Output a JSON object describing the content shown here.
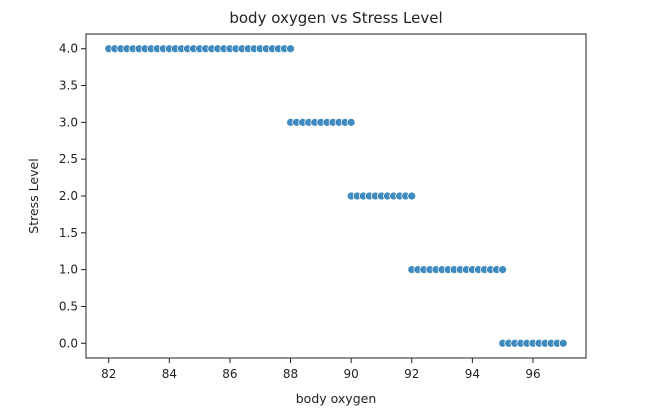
{
  "chart_data": {
    "type": "scatter",
    "title": "body oxygen vs Stress Level",
    "xlabel": "body oxygen",
    "ylabel": "Stress Level",
    "xlim": [
      81.25,
      97.75
    ],
    "ylim": [
      -0.2,
      4.2
    ],
    "xticks": [
      "82",
      "84",
      "86",
      "88",
      "90",
      "92",
      "94",
      "96"
    ],
    "yticks": [
      "0.0",
      "0.5",
      "1.0",
      "1.5",
      "2.0",
      "2.5",
      "3.0",
      "3.5",
      "4.0"
    ],
    "grid": false,
    "marker_color": "#1f77b4",
    "series": [
      {
        "points": [
          [
            82.0,
            4
          ],
          [
            82.2,
            4
          ],
          [
            82.4,
            4
          ],
          [
            82.6,
            4
          ],
          [
            82.8,
            4
          ],
          [
            83.0,
            4
          ],
          [
            83.2,
            4
          ],
          [
            83.4,
            4
          ],
          [
            83.6,
            4
          ],
          [
            83.8,
            4
          ],
          [
            84.0,
            4
          ],
          [
            84.2,
            4
          ],
          [
            84.4,
            4
          ],
          [
            84.6,
            4
          ],
          [
            84.8,
            4
          ],
          [
            85.0,
            4
          ],
          [
            85.2,
            4
          ],
          [
            85.4,
            4
          ],
          [
            85.6,
            4
          ],
          [
            85.8,
            4
          ],
          [
            86.0,
            4
          ],
          [
            86.2,
            4
          ],
          [
            86.4,
            4
          ],
          [
            86.6,
            4
          ],
          [
            86.8,
            4
          ],
          [
            87.0,
            4
          ],
          [
            87.2,
            4
          ],
          [
            87.4,
            4
          ],
          [
            87.6,
            4
          ],
          [
            87.8,
            4
          ],
          [
            88.0,
            4
          ],
          [
            88.0,
            3
          ],
          [
            88.2,
            3
          ],
          [
            88.4,
            3
          ],
          [
            88.6,
            3
          ],
          [
            88.8,
            3
          ],
          [
            89.0,
            3
          ],
          [
            89.2,
            3
          ],
          [
            89.4,
            3
          ],
          [
            89.6,
            3
          ],
          [
            89.8,
            3
          ],
          [
            90.0,
            3
          ],
          [
            90.0,
            2
          ],
          [
            90.2,
            2
          ],
          [
            90.4,
            2
          ],
          [
            90.6,
            2
          ],
          [
            90.8,
            2
          ],
          [
            91.0,
            2
          ],
          [
            91.2,
            2
          ],
          [
            91.4,
            2
          ],
          [
            91.6,
            2
          ],
          [
            91.8,
            2
          ],
          [
            92.0,
            2
          ],
          [
            92.0,
            1
          ],
          [
            92.2,
            1
          ],
          [
            92.4,
            1
          ],
          [
            92.6,
            1
          ],
          [
            92.8,
            1
          ],
          [
            93.0,
            1
          ],
          [
            93.2,
            1
          ],
          [
            93.4,
            1
          ],
          [
            93.6,
            1
          ],
          [
            93.8,
            1
          ],
          [
            94.0,
            1
          ],
          [
            94.2,
            1
          ],
          [
            94.4,
            1
          ],
          [
            94.6,
            1
          ],
          [
            94.8,
            1
          ],
          [
            95.0,
            1
          ],
          [
            95.0,
            0
          ],
          [
            95.2,
            0
          ],
          [
            95.4,
            0
          ],
          [
            95.6,
            0
          ],
          [
            95.8,
            0
          ],
          [
            96.0,
            0
          ],
          [
            96.2,
            0
          ],
          [
            96.4,
            0
          ],
          [
            96.6,
            0
          ],
          [
            96.8,
            0
          ],
          [
            97.0,
            0
          ]
        ]
      }
    ]
  }
}
